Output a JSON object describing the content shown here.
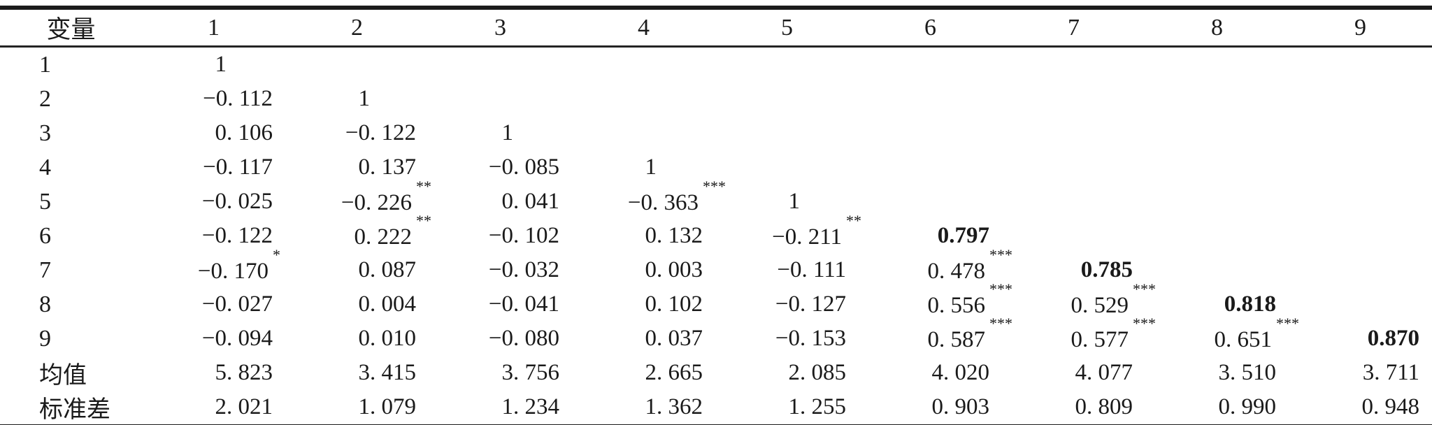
{
  "colors": {
    "background": "#ffffff",
    "text": "#1a1a1a",
    "rule": "#1b1b1b"
  },
  "table": {
    "header": [
      "变量",
      "1",
      "2",
      "3",
      "4",
      "5",
      "6",
      "7",
      "8",
      "9"
    ],
    "rows": [
      {
        "label": "1",
        "cells": [
          {
            "t": "1"
          }
        ]
      },
      {
        "label": "2",
        "cells": [
          {
            "t": "−0. 112"
          },
          {
            "t": "1"
          }
        ]
      },
      {
        "label": "3",
        "cells": [
          {
            "t": "0. 106"
          },
          {
            "t": "−0. 122"
          },
          {
            "t": "1"
          }
        ]
      },
      {
        "label": "4",
        "cells": [
          {
            "t": "−0. 117"
          },
          {
            "t": "0. 137"
          },
          {
            "t": "−0. 085"
          },
          {
            "t": "1"
          }
        ]
      },
      {
        "label": "5",
        "cells": [
          {
            "t": "−0. 025"
          },
          {
            "t": "−0. 226",
            "sup": "**"
          },
          {
            "t": "0. 041"
          },
          {
            "t": "−0. 363",
            "sup": "***"
          },
          {
            "t": "1"
          }
        ]
      },
      {
        "label": "6",
        "cells": [
          {
            "t": "−0. 122"
          },
          {
            "t": "0. 222",
            "sup": "**"
          },
          {
            "t": "−0. 102"
          },
          {
            "t": "0. 132"
          },
          {
            "t": "−0. 211",
            "sup": "**"
          },
          {
            "t": "0.797",
            "bold": true
          }
        ]
      },
      {
        "label": "7",
        "cells": [
          {
            "t": "−0. 170",
            "sup": "*"
          },
          {
            "t": "0. 087"
          },
          {
            "t": "−0. 032"
          },
          {
            "t": "0. 003"
          },
          {
            "t": "−0. 111"
          },
          {
            "t": "0. 478",
            "sup": "***"
          },
          {
            "t": "0.785",
            "bold": true
          }
        ]
      },
      {
        "label": "8",
        "cells": [
          {
            "t": "−0. 027"
          },
          {
            "t": "0. 004"
          },
          {
            "t": "−0. 041"
          },
          {
            "t": "0. 102"
          },
          {
            "t": "−0. 127"
          },
          {
            "t": "0. 556",
            "sup": "***"
          },
          {
            "t": "0. 529",
            "sup": "***"
          },
          {
            "t": "0.818",
            "bold": true
          }
        ]
      },
      {
        "label": "9",
        "cells": [
          {
            "t": "−0. 094"
          },
          {
            "t": "0. 010"
          },
          {
            "t": "−0. 080"
          },
          {
            "t": "0. 037"
          },
          {
            "t": "−0. 153"
          },
          {
            "t": "0. 587",
            "sup": "***"
          },
          {
            "t": "0. 577",
            "sup": "***"
          },
          {
            "t": "0. 651",
            "sup": "***"
          },
          {
            "t": "0.870",
            "bold": true
          }
        ]
      },
      {
        "label": "均值",
        "cells": [
          {
            "t": "5. 823"
          },
          {
            "t": "3. 415"
          },
          {
            "t": "3. 756"
          },
          {
            "t": "2. 665"
          },
          {
            "t": "2. 085"
          },
          {
            "t": "4. 020"
          },
          {
            "t": "4. 077"
          },
          {
            "t": "3. 510"
          },
          {
            "t": "3. 711"
          }
        ]
      },
      {
        "label": "标准差",
        "cells": [
          {
            "t": "2. 021"
          },
          {
            "t": "1. 079"
          },
          {
            "t": "1. 234"
          },
          {
            "t": "1. 362"
          },
          {
            "t": "1. 255"
          },
          {
            "t": "0. 903"
          },
          {
            "t": "0. 809"
          },
          {
            "t": "0. 990"
          },
          {
            "t": "0. 948"
          }
        ]
      }
    ]
  }
}
